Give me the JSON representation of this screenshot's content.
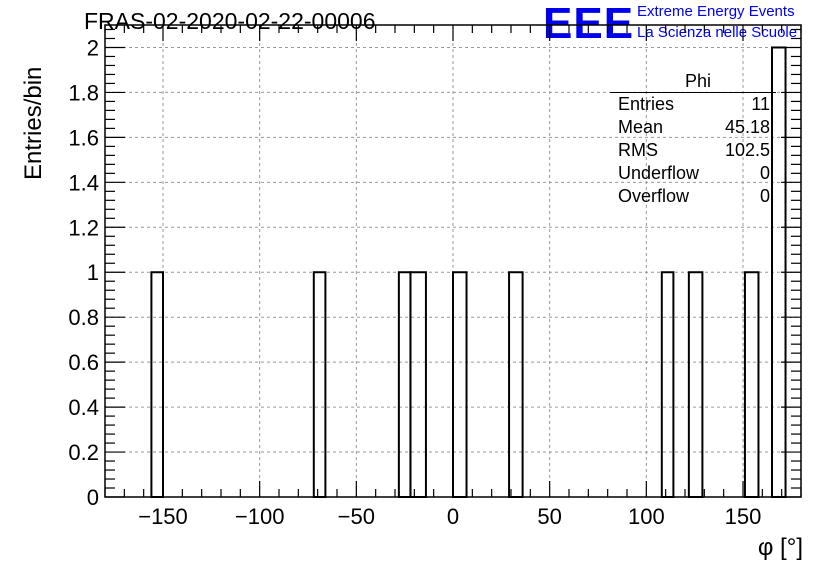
{
  "chart_data": {
    "type": "bar",
    "title": "FRAS-02-2020-02-22-00006",
    "xlabel": "φ [°]",
    "ylabel": "Entries/bin",
    "xlim": [
      -180,
      180
    ],
    "ylim": [
      0,
      2.1
    ],
    "bin_width": 6,
    "x_ticks": [
      -150,
      -100,
      -50,
      0,
      50,
      100,
      150
    ],
    "x_tick_labels": [
      "−150",
      "−100",
      "−50",
      "0",
      "50",
      "100",
      "150"
    ],
    "y_ticks": [
      0,
      0.2,
      0.4,
      0.6,
      0.8,
      1,
      1.2,
      1.4,
      1.6,
      1.8,
      2
    ],
    "y_tick_labels": [
      "0",
      "0.2",
      "0.4",
      "0.6",
      "0.8",
      "1",
      "1.2",
      "1.4",
      "1.6",
      "1.8",
      "2"
    ],
    "grid": true,
    "bins": [
      {
        "x0": -156,
        "x1": -150,
        "value": 1
      },
      {
        "x0": -72,
        "x1": -66,
        "value": 1
      },
      {
        "x0": -28,
        "x1": -22,
        "value": 1
      },
      {
        "x0": -22,
        "x1": -14,
        "value": 1
      },
      {
        "x0": 0,
        "x1": 7,
        "value": 1
      },
      {
        "x0": 29,
        "x1": 36,
        "value": 1
      },
      {
        "x0": 108,
        "x1": 114,
        "value": 1
      },
      {
        "x0": 122,
        "x1": 129,
        "value": 1
      },
      {
        "x0": 151,
        "x1": 158,
        "value": 1
      },
      {
        "x0": 165,
        "x1": 172,
        "value": 2
      }
    ],
    "stats_box": {
      "name": "Phi",
      "rows": [
        {
          "label": "Entries",
          "value": "11"
        },
        {
          "label": "Mean",
          "value": "45.18"
        },
        {
          "label": "RMS",
          "value": "102.5"
        },
        {
          "label": "Underflow",
          "value": "0"
        },
        {
          "label": "Overflow",
          "value": "0"
        }
      ],
      "position": "top-right"
    }
  },
  "logo": {
    "mark": "EEE",
    "line1": "Extreme Energy Events",
    "line2": "La Scienza nelle Scuole"
  },
  "colors": {
    "logo": "#0000ee",
    "line": "#000000",
    "grid": "#9a9a9a"
  }
}
